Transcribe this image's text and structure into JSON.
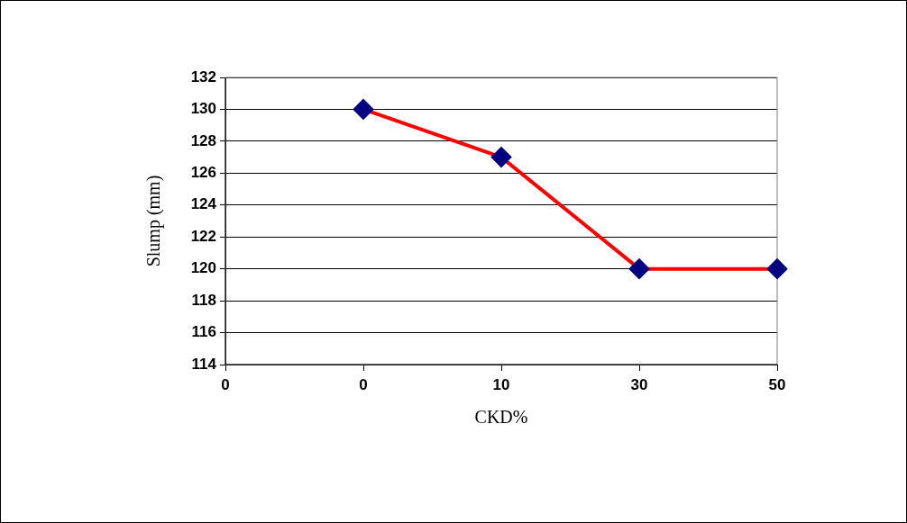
{
  "chart_data": {
    "type": "line",
    "xlabel": "CKD%",
    "ylabel": "Slump (mm)",
    "categories": [
      "0",
      "0",
      "10",
      "30",
      "50"
    ],
    "series": [
      {
        "color": "#ff0000",
        "values": [
          null,
          130,
          127,
          120,
          120
        ]
      }
    ],
    "ylim": [
      114,
      132
    ],
    "yticks": [
      114,
      116,
      118,
      120,
      122,
      124,
      126,
      128,
      130,
      132
    ],
    "grid": "y",
    "legend": false,
    "marker": "diamond",
    "line_style": "solid"
  }
}
